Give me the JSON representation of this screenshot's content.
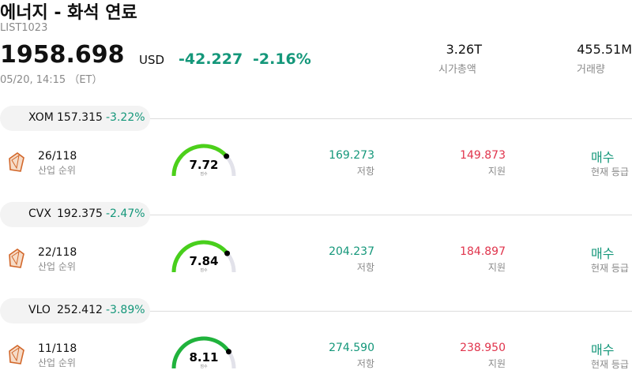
{
  "header": {
    "title": "에너지 - 화석 연료",
    "code": "LIST1023",
    "price": "1958.698",
    "currency": "USD",
    "change": "-42.227",
    "change_pct": "-2.16%",
    "date": "05/20, 14:15 （ET）",
    "market_cap": {
      "value": "3.26T",
      "label": "시가총액"
    },
    "volume": {
      "value": "455.51M",
      "label": "거래량"
    }
  },
  "stocks": [
    {
      "ticker": "XOM",
      "price": "157.315",
      "change_pct": "-3.22%",
      "rank": "26/118",
      "rank_label": "산업 순위",
      "score": 7.72,
      "score_label": "점수",
      "resistance": "169.273",
      "resistance_label": "저항",
      "support": "149.873",
      "support_label": "지원",
      "rating": "매수",
      "rating_label": "현재 등급"
    },
    {
      "ticker": "CVX",
      "price": "192.375",
      "change_pct": "-2.47%",
      "rank": "22/118",
      "rank_label": "산업 순위",
      "score": 7.84,
      "score_label": "점수",
      "resistance": "204.237",
      "resistance_label": "저항",
      "support": "184.897",
      "support_label": "지원",
      "rating": "매수",
      "rating_label": "현재 등급"
    },
    {
      "ticker": "VLO",
      "price": "252.412",
      "change_pct": "-3.89%",
      "rank": "11/118",
      "rank_label": "산업 순위",
      "score": 8.11,
      "score_label": "점수",
      "resistance": "274.590",
      "resistance_label": "저항",
      "support": "238.950",
      "support_label": "지원",
      "rating": "매수",
      "rating_label": "현재 등급"
    }
  ]
}
